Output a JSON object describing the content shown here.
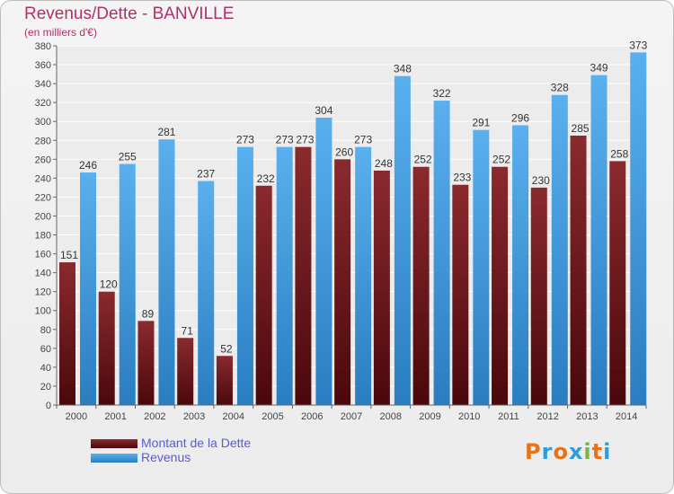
{
  "header": {
    "title": "Revenus/Dette - BANVILLE",
    "subtitle": "(en milliers d'€)"
  },
  "legend": {
    "dette_label": "Montant de la Dette",
    "revenus_label": "Revenus"
  },
  "logo": {
    "text": "Proxiti",
    "letter_colors": [
      "#e5731c",
      "#2a9fd8",
      "#e5731c",
      "#2a9fd8",
      "#7cb342",
      "#e5731c",
      "#2a9fd8"
    ]
  },
  "colors": {
    "dette": "#7a1f23",
    "dette_dark": "#4d0a0e",
    "revenus": "#4ea6e6",
    "revenus_dark": "#2c7fc0",
    "title": "#b0306a",
    "legend_text": "#5a5ad8"
  },
  "chart_data": {
    "type": "bar",
    "title": "Revenus/Dette - BANVILLE",
    "subtitle": "(en milliers d'€)",
    "categories": [
      "2000",
      "2001",
      "2002",
      "2003",
      "2004",
      "2005",
      "2006",
      "2007",
      "2008",
      "2009",
      "2010",
      "2011",
      "2012",
      "2013",
      "2014"
    ],
    "series": [
      {
        "name": "Montant de la Dette",
        "values": [
          151,
          120,
          89,
          71,
          52,
          232,
          273,
          260,
          248,
          252,
          233,
          252,
          230,
          285,
          258
        ]
      },
      {
        "name": "Revenus",
        "values": [
          246,
          255,
          281,
          237,
          273,
          273,
          304,
          273,
          348,
          322,
          291,
          296,
          328,
          349,
          373
        ]
      }
    ],
    "ylim": [
      0,
      380
    ],
    "yticks": [
      0,
      20,
      40,
      60,
      80,
      100,
      120,
      140,
      160,
      180,
      200,
      220,
      240,
      260,
      280,
      300,
      320,
      340,
      360,
      380
    ],
    "grid": true,
    "legend_position": "bottom-left"
  }
}
